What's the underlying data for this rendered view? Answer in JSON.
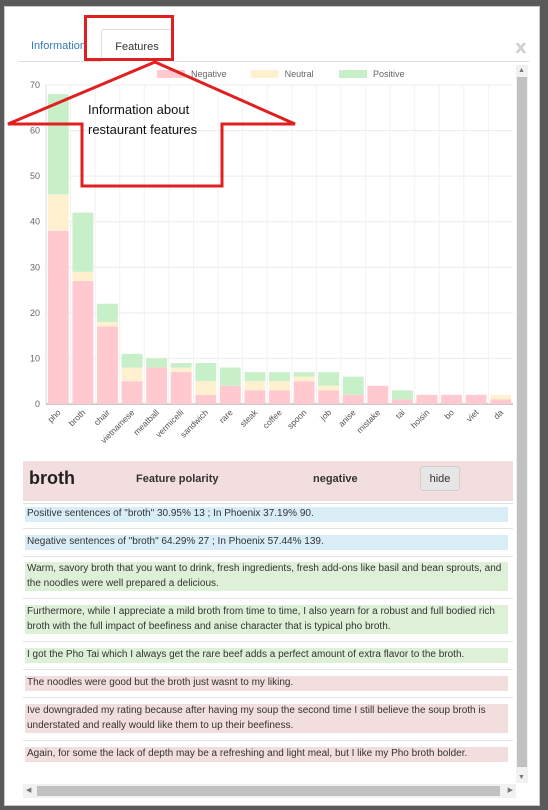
{
  "tabs": [
    {
      "label": "Information",
      "active": false
    },
    {
      "label": "Features",
      "active": true
    }
  ],
  "close_label": "x",
  "chart_data": {
    "type": "bar",
    "stacked": true,
    "categories": [
      "pho",
      "broth",
      "chair",
      "vietnamese",
      "meatball",
      "vermicelli",
      "sandwich",
      "rare",
      "steak",
      "coffee",
      "spoon",
      "job",
      "anise",
      "mistake",
      "tai",
      "hoisin",
      "bo",
      "viet",
      "da"
    ],
    "series": [
      {
        "name": "Negative",
        "color": "#ffc9cf",
        "values": [
          38,
          27,
          17,
          5,
          8,
          7,
          2,
          4,
          3,
          3,
          5,
          3,
          2,
          4,
          1,
          2,
          2,
          2,
          1
        ]
      },
      {
        "name": "Neutral",
        "color": "#fff0cf",
        "values": [
          8,
          2,
          1,
          3,
          0,
          1,
          3,
          0,
          2,
          2,
          1,
          1,
          0,
          0,
          0,
          0,
          0,
          0,
          1
        ]
      },
      {
        "name": "Positive",
        "color": "#c8f0c8",
        "values": [
          22,
          13,
          4,
          3,
          2,
          1,
          4,
          4,
          2,
          2,
          1,
          3,
          4,
          0,
          2,
          0,
          0,
          0,
          0
        ]
      }
    ],
    "ylim": [
      0,
      70
    ],
    "yticks": [
      0,
      10,
      20,
      30,
      40,
      50,
      60,
      70
    ],
    "grid": true,
    "legend": "top-center"
  },
  "feature": {
    "word": "broth",
    "label": "Feature polarity",
    "polarity": "negative",
    "hide_label": "hide"
  },
  "sentences": [
    {
      "text": "Positive sentences of \"broth\" 30.95% 13 ; In Phoenix 37.19% 90.",
      "kind": "blue"
    },
    {
      "text": "Negative sentences of \"broth\" 64.29% 27 ; In Phoenix 57.44% 139.",
      "kind": "blue"
    },
    {
      "text": "Warm, savory broth that you want to drink, fresh ingredients, fresh add-ons like basil and bean sprouts, and the noodles were well prepared a delicious.",
      "kind": "green"
    },
    {
      "text": "Furthermore, while I appreciate a mild broth from time to time, I also yearn for a robust and full bodied rich broth with the full impact of beefiness and anise character that is typical pho broth.",
      "kind": "green"
    },
    {
      "text": "I got the Pho Tai which I always get the rare beef adds a perfect amount of extra flavor to the broth.",
      "kind": "green"
    },
    {
      "text": "The noodles were good but the broth just wasnt to my liking.",
      "kind": "red"
    },
    {
      "text": "Ive downgraded my rating because after having my soup the second time I still believe the soup broth is understated and really would like them to up their beefiness.",
      "kind": "red"
    },
    {
      "text": "Again, for some the lack of depth may be a refreshing and light meal, but I like my Pho broth bolder.",
      "kind": "red"
    }
  ],
  "annotation": {
    "line1": "Information about",
    "line2": "restaurant features",
    "color": "#e02020"
  }
}
